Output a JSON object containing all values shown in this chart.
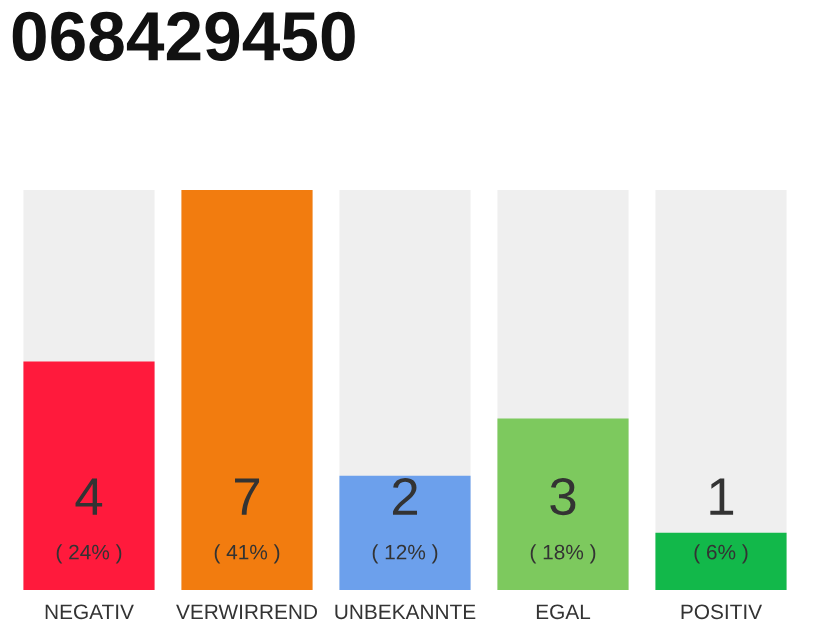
{
  "chart_data": {
    "type": "bar",
    "title": "068429450",
    "categories": [
      "NEGATIV",
      "VERWIRREND",
      "UNBEKANNTE",
      "EGAL",
      "POSITIV"
    ],
    "values": [
      4,
      7,
      2,
      3,
      1
    ],
    "colors": [
      "#ff1a3c",
      "#f27c0f",
      "#6ca0ec",
      "#7dc95e",
      "#12b84a"
    ],
    "value_labels": [
      "4\n( 24% )",
      "7\n( 41% )",
      "2\n( 12% )",
      "3\n( 18% )",
      "1\n( 6% )"
    ],
    "ylim": [
      0,
      7
    ],
    "tick_labels": "x",
    "grid": false,
    "legend": false
  }
}
